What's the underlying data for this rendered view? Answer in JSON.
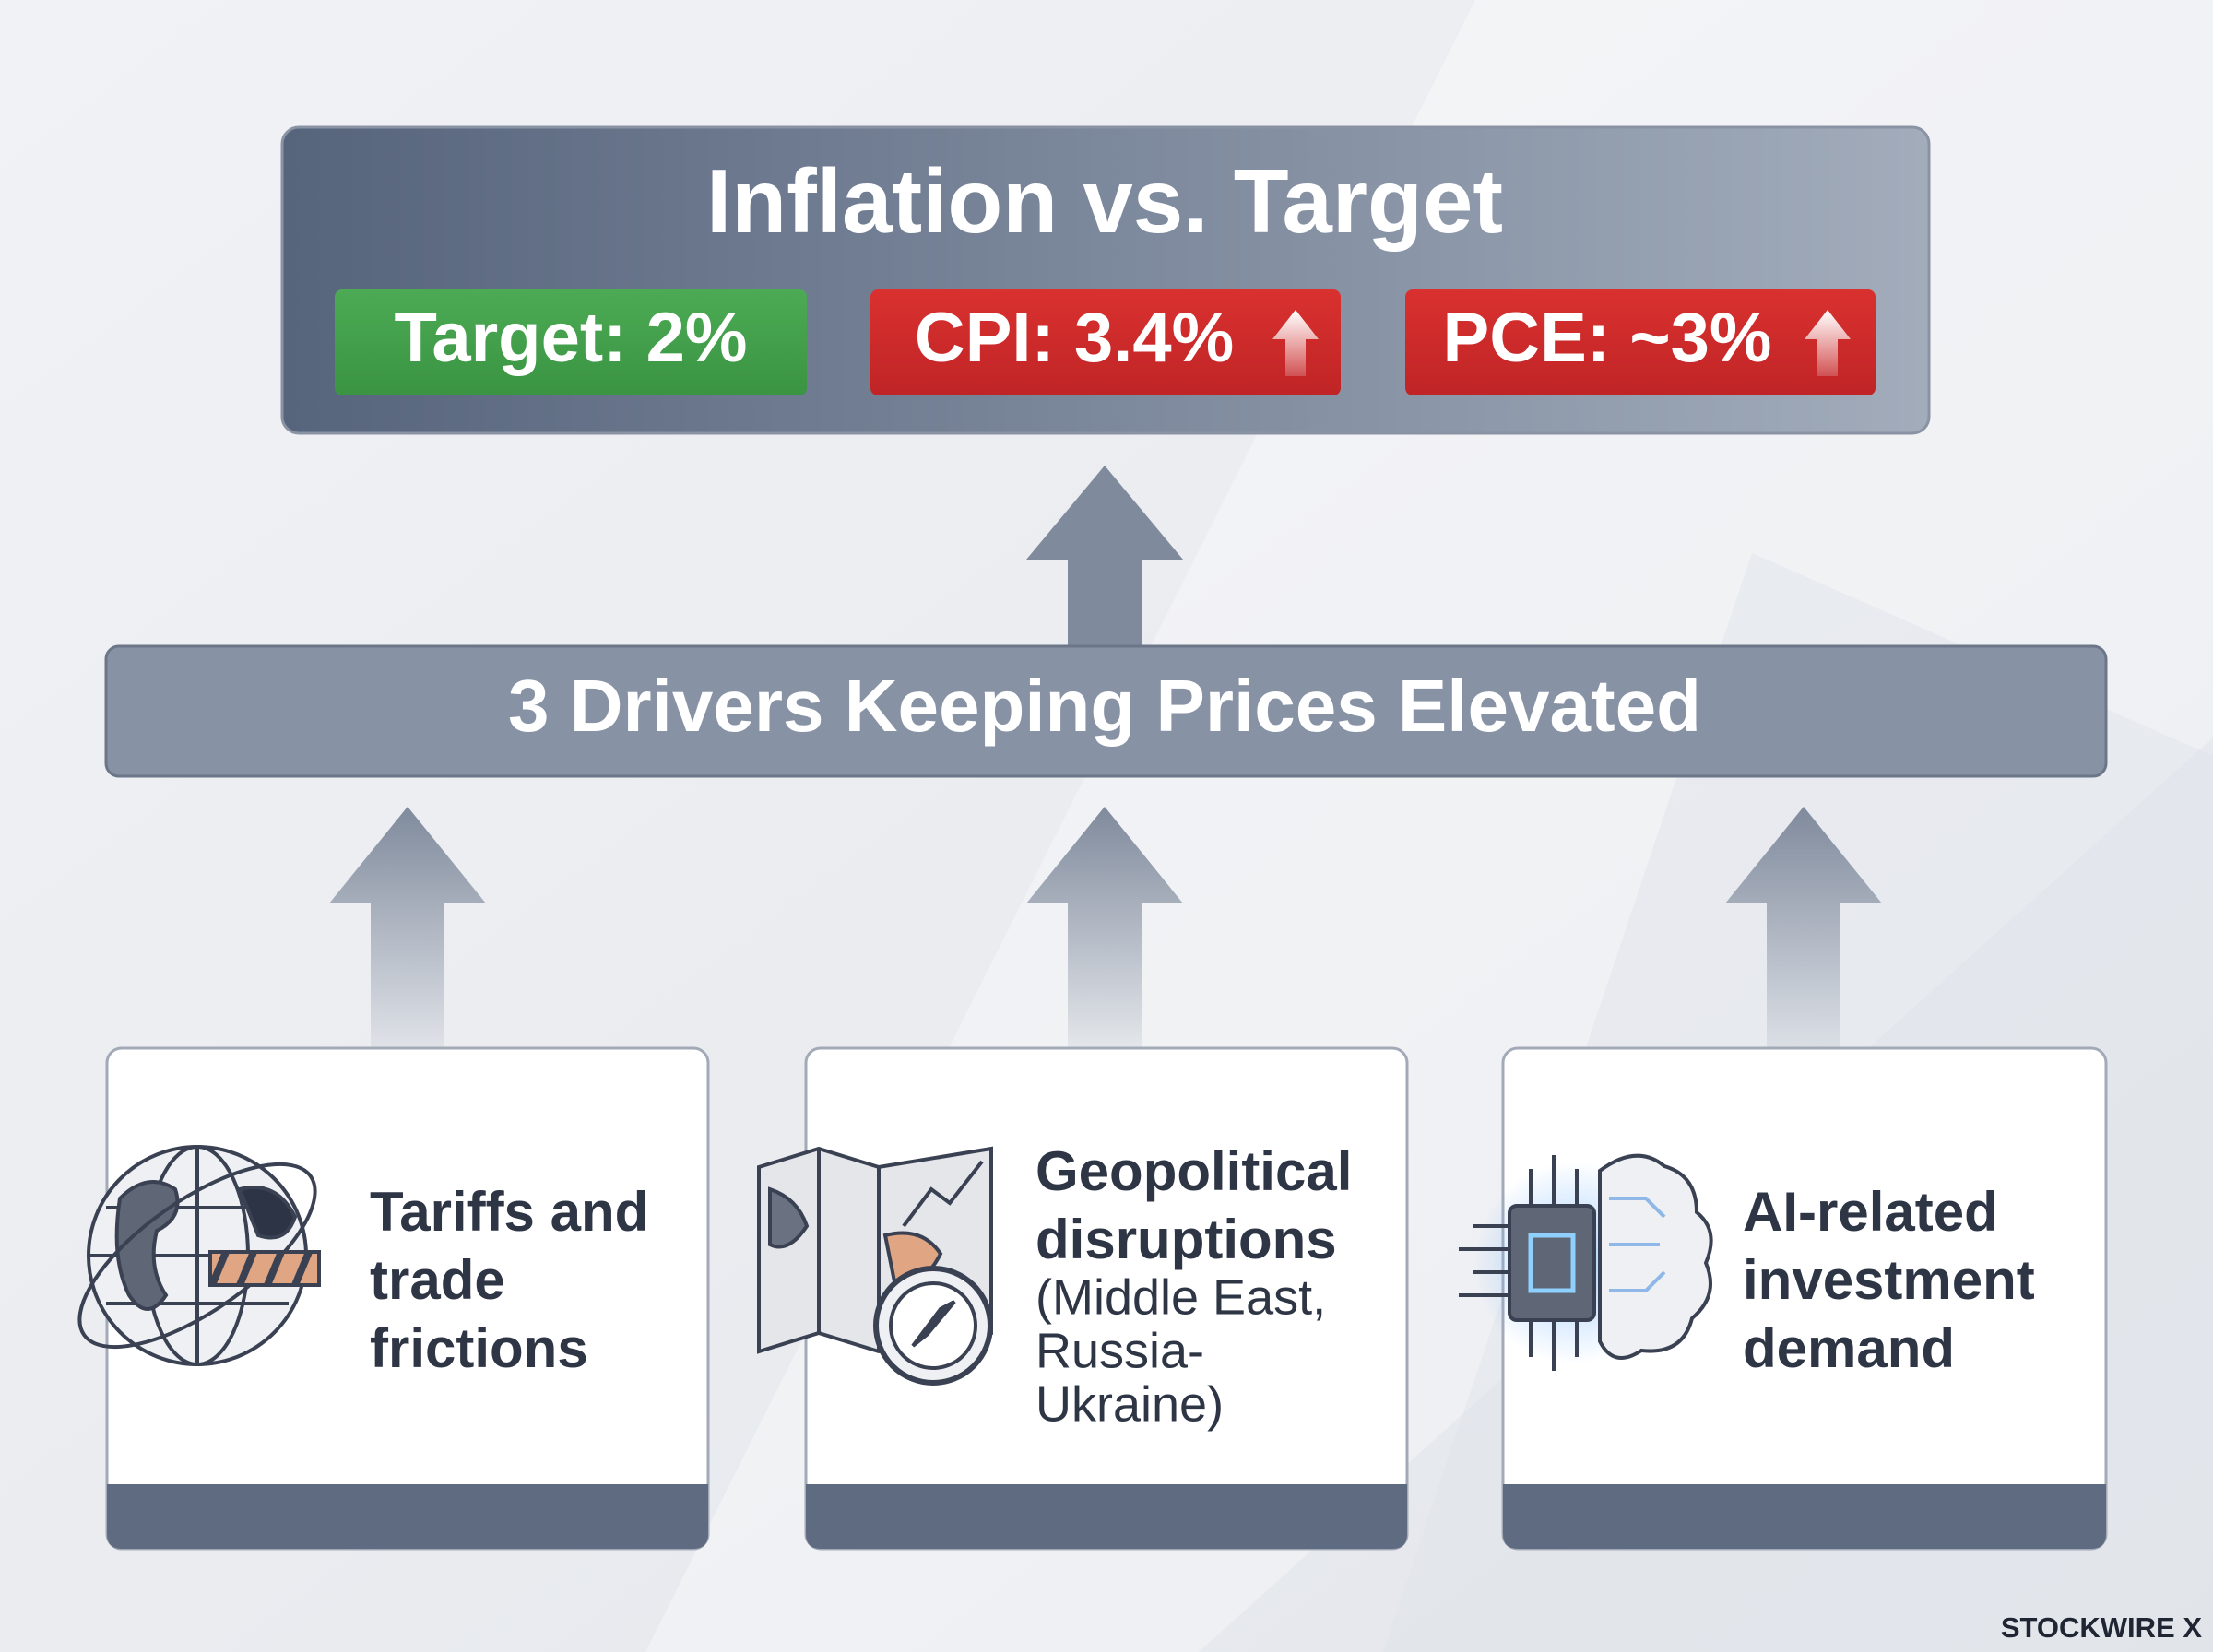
{
  "header": {
    "title": "Inflation vs. Target",
    "badges": [
      "Target: 2%",
      "CPI: 3.4%",
      "PCE: ~3%"
    ]
  },
  "drivers_title": "3 Drivers Keeping Prices Elevated",
  "cards": [
    {
      "lines": [
        "Tariffs and",
        "trade",
        "frictions"
      ]
    },
    {
      "lines": [
        "Geopolitical",
        "disruptions"
      ],
      "detail": [
        "(Middle East,",
        "Russia-",
        "Ukraine)"
      ]
    },
    {
      "lines": [
        "AI-related",
        "investment",
        "demand"
      ]
    }
  ],
  "brand": "STOCKWIRE X"
}
